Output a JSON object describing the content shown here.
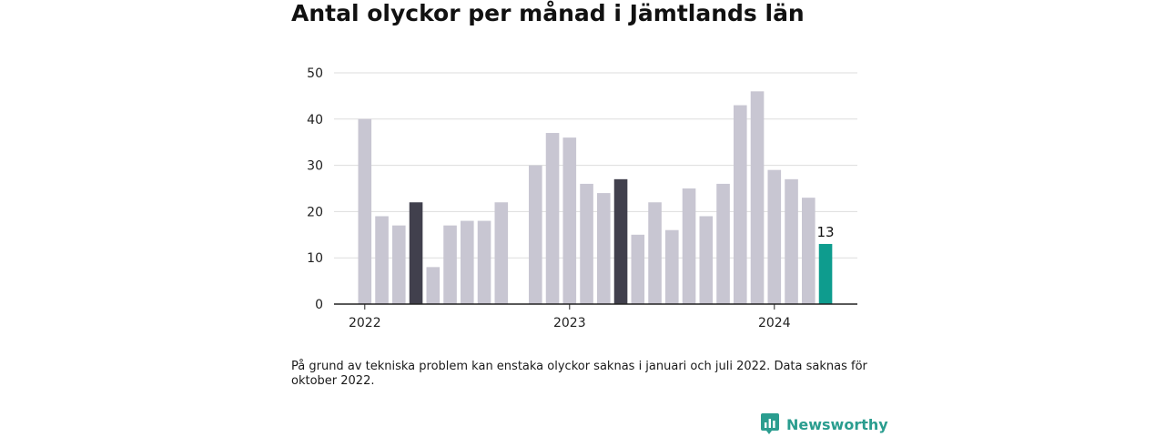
{
  "chart_data": {
    "type": "bar",
    "title": "Antal olyckor per månad i Jämtlands län",
    "x_tick_labels": [
      "2022",
      "2023",
      "2024"
    ],
    "y_tick_labels": [
      "0",
      "10",
      "20",
      "30",
      "40",
      "50"
    ],
    "ylim": [
      0,
      50
    ],
    "grid": true,
    "categories": [
      "2022-01",
      "2022-02",
      "2022-03",
      "2022-04",
      "2022-05",
      "2022-06",
      "2022-07",
      "2022-08",
      "2022-09",
      "2022-10",
      "2022-11",
      "2022-12",
      "2023-01",
      "2023-02",
      "2023-03",
      "2023-04",
      "2023-05",
      "2023-06",
      "2023-07",
      "2023-08",
      "2023-09",
      "2023-10",
      "2023-11",
      "2023-12",
      "2024-01",
      "2024-02",
      "2024-03",
      "2024-04"
    ],
    "values": [
      40,
      19,
      17,
      22,
      8,
      17,
      18,
      18,
      22,
      null,
      30,
      37,
      36,
      26,
      24,
      27,
      15,
      22,
      16,
      25,
      19,
      26,
      43,
      46,
      29,
      27,
      23,
      13
    ],
    "highlight_dark": [
      "2022-04",
      "2023-04"
    ],
    "highlight_latest": "2024-04",
    "value_label": "13",
    "colors": {
      "bar": "#c8c6d2",
      "dark": "#41404d",
      "latest": "#0e9c8e",
      "grid": "#dddddd",
      "axis": "#222222"
    }
  },
  "footnote": "På grund av tekniska problem kan enstaka olyckor saknas i januari och juli 2022. Data saknas för oktober 2022.",
  "brand": {
    "name": "Newsworthy",
    "icon": "bar-chart-bubble-icon",
    "color": "#2a9d8f"
  }
}
